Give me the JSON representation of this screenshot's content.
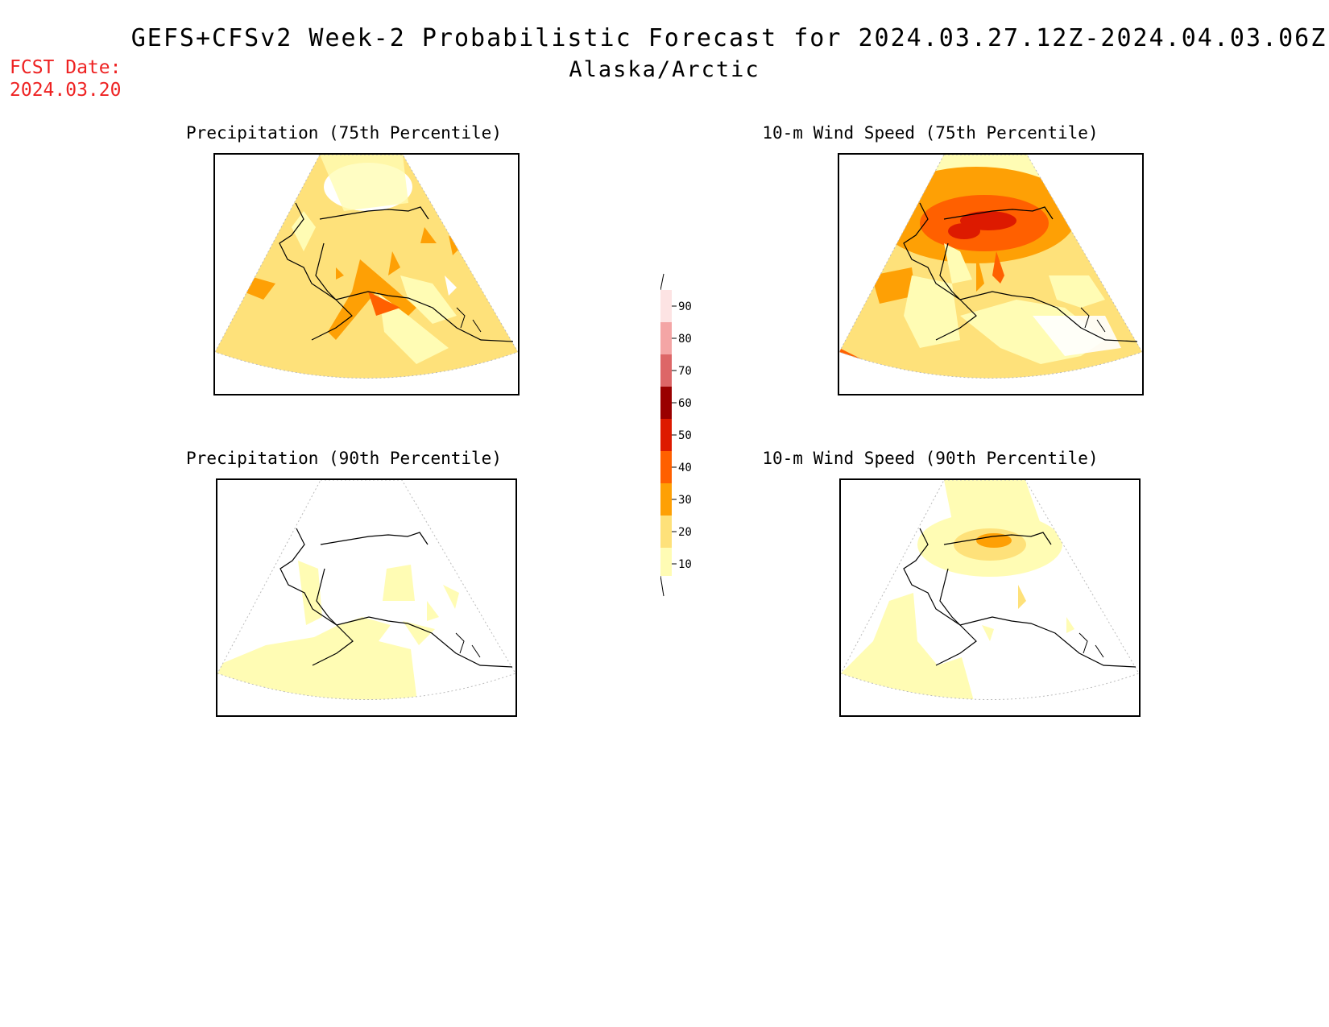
{
  "header": {
    "title": "GEFS+CFSv2 Week-2 Probabilistic Forecast for 2024.03.27.12Z-2024.04.03.06Z",
    "subtitle": "Alaska/Arctic",
    "fcst_label": "FCST Date:",
    "fcst_date": "2024.03.20"
  },
  "panels": [
    {
      "id": "p75",
      "title": "Precipitation (75th Percentile)"
    },
    {
      "id": "w75",
      "title": "10-m Wind Speed (75th Percentile)"
    },
    {
      "id": "p90",
      "title": "Precipitation (90th Percentile)"
    },
    {
      "id": "w90",
      "title": "10-m Wind Speed (90th Percentile)"
    }
  ],
  "colorbar": {
    "ticks": [
      "10",
      "20",
      "30",
      "40",
      "50",
      "60",
      "70",
      "80",
      "90"
    ],
    "colors": {
      "10-20": "#fffcb4",
      "20-30": "#fee17a",
      "30-40": "#fea005",
      "40-50": "#ff6000",
      "50-60": "#dd1a00",
      "60-70": "#9a0000",
      "70-80": "#dd6667",
      "80-90": "#f4a5a5",
      "90+": "#fde3e3"
    }
  }
}
